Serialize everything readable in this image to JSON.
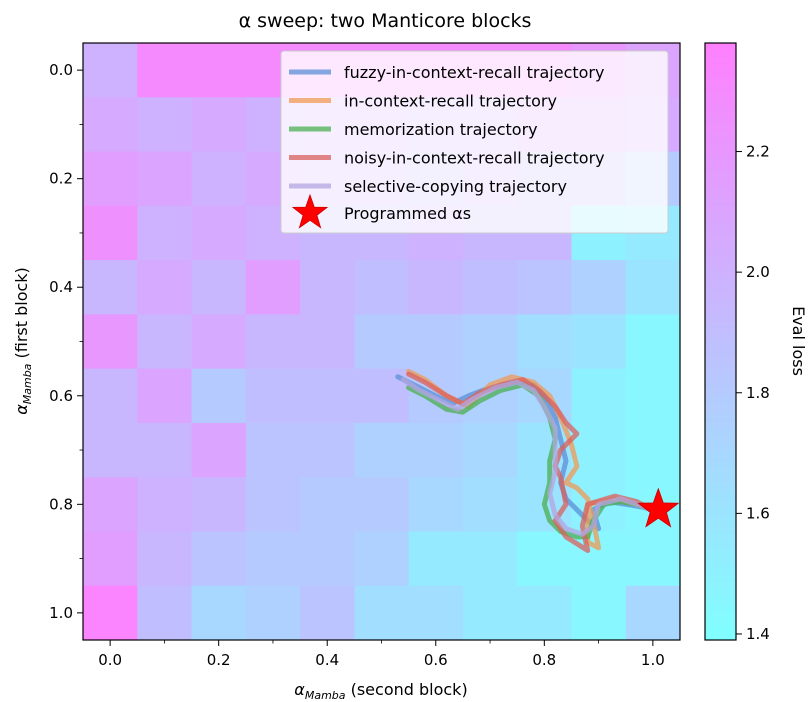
{
  "chart_data": {
    "type": "heatmap",
    "title": "α sweep: two Manticore blocks",
    "xlabel": "α",
    "xlabel_sub": "Mamba",
    "xlabel_suffix": " (second block)",
    "ylabel": "α",
    "ylabel_sub": "Mamba",
    "ylabel_suffix": " (first block)",
    "xlim": [
      -0.05,
      1.05
    ],
    "ylim": [
      1.05,
      -0.05
    ],
    "x_ticks": [
      0.0,
      0.2,
      0.4,
      0.6,
      0.8,
      1.0
    ],
    "x_tick_labels": [
      "0.0",
      "0.2",
      "0.4",
      "0.6",
      "0.8",
      "1.0"
    ],
    "y_ticks": [
      0.0,
      0.2,
      0.4,
      0.6,
      0.8,
      1.0
    ],
    "y_tick_labels": [
      "0.0",
      "0.2",
      "0.4",
      "0.6",
      "0.8",
      "1.0"
    ],
    "grid": false,
    "colorbar": {
      "label": "Eval loss",
      "range": [
        1.39,
        2.38
      ],
      "ticks": [
        1.4,
        1.6,
        1.8,
        2.0,
        2.2
      ],
      "tick_labels": [
        "1.4",
        "1.6",
        "1.8",
        "2.0",
        "2.2"
      ],
      "colors": [
        "#80ffff",
        "#ff80ff"
      ]
    },
    "grid_axis_values": [
      0.0,
      0.1,
      0.2,
      0.3,
      0.4,
      0.5,
      0.6,
      0.7,
      0.8,
      0.9,
      1.0
    ],
    "heatmap_values": [
      [
        2.0,
        2.3,
        2.3,
        2.3,
        2.3,
        2.3,
        2.3,
        2.3,
        2.3,
        2.2,
        2.1
      ],
      [
        2.05,
        2.0,
        2.05,
        2.0,
        2.05,
        2.05,
        2.0,
        2.0,
        2.1,
        2.1,
        2.05
      ],
      [
        2.15,
        2.1,
        2.0,
        2.05,
        2.0,
        2.0,
        1.95,
        2.0,
        1.95,
        1.95,
        1.8
      ],
      [
        2.25,
        2.0,
        2.05,
        2.0,
        1.95,
        1.95,
        2.0,
        1.95,
        1.95,
        1.5,
        1.55
      ],
      [
        1.95,
        2.05,
        1.95,
        2.15,
        1.95,
        1.9,
        1.95,
        1.9,
        1.85,
        1.75,
        1.6
      ],
      [
        2.2,
        1.95,
        2.05,
        1.95,
        1.95,
        1.8,
        1.8,
        1.75,
        1.65,
        1.6,
        1.45
      ],
      [
        1.95,
        2.1,
        1.8,
        1.9,
        1.9,
        1.9,
        1.8,
        1.75,
        1.7,
        1.5,
        1.45
      ],
      [
        1.95,
        1.95,
        2.1,
        1.85,
        1.85,
        1.75,
        1.75,
        1.7,
        1.6,
        1.5,
        1.45
      ],
      [
        2.1,
        2.0,
        1.95,
        1.85,
        1.8,
        1.8,
        1.7,
        1.65,
        1.6,
        1.5,
        1.45
      ],
      [
        2.15,
        1.95,
        1.85,
        1.8,
        1.8,
        1.75,
        1.55,
        1.55,
        1.45,
        1.45,
        1.45
      ],
      [
        2.35,
        1.9,
        1.7,
        1.75,
        1.85,
        1.65,
        1.65,
        1.55,
        1.55,
        1.45,
        1.7
      ]
    ],
    "series": [
      {
        "name": "fuzzy-in-context-recall trajectory",
        "color": "#5b8fd6",
        "points": [
          [
            0.53,
            0.565
          ],
          [
            0.56,
            0.58
          ],
          [
            0.6,
            0.6
          ],
          [
            0.63,
            0.615
          ],
          [
            0.66,
            0.6
          ],
          [
            0.7,
            0.585
          ],
          [
            0.75,
            0.575
          ],
          [
            0.78,
            0.58
          ],
          [
            0.8,
            0.6
          ],
          [
            0.82,
            0.64
          ],
          [
            0.83,
            0.68
          ],
          [
            0.84,
            0.72
          ],
          [
            0.83,
            0.76
          ],
          [
            0.84,
            0.79
          ],
          [
            0.86,
            0.81
          ],
          [
            0.88,
            0.83
          ],
          [
            0.9,
            0.845
          ],
          [
            0.89,
            0.81
          ],
          [
            0.92,
            0.795
          ],
          [
            0.95,
            0.8
          ],
          [
            0.98,
            0.805
          ],
          [
            1.0,
            0.81
          ]
        ]
      },
      {
        "name": "in-context-recall trajectory",
        "color": "#f09a55",
        "points": [
          [
            0.55,
            0.555
          ],
          [
            0.58,
            0.57
          ],
          [
            0.62,
            0.6
          ],
          [
            0.66,
            0.62
          ],
          [
            0.7,
            0.58
          ],
          [
            0.74,
            0.565
          ],
          [
            0.78,
            0.575
          ],
          [
            0.81,
            0.6
          ],
          [
            0.83,
            0.64
          ],
          [
            0.85,
            0.69
          ],
          [
            0.86,
            0.73
          ],
          [
            0.84,
            0.76
          ],
          [
            0.86,
            0.77
          ],
          [
            0.88,
            0.79
          ],
          [
            0.89,
            0.83
          ],
          [
            0.9,
            0.88
          ],
          [
            0.88,
            0.87
          ],
          [
            0.88,
            0.8
          ],
          [
            0.93,
            0.79
          ],
          [
            0.97,
            0.8
          ],
          [
            1.0,
            0.81
          ]
        ]
      },
      {
        "name": "memorization trajectory",
        "color": "#4caf50",
        "points": [
          [
            0.55,
            0.585
          ],
          [
            0.58,
            0.6
          ],
          [
            0.62,
            0.625
          ],
          [
            0.65,
            0.63
          ],
          [
            0.68,
            0.61
          ],
          [
            0.72,
            0.59
          ],
          [
            0.76,
            0.58
          ],
          [
            0.79,
            0.6
          ],
          [
            0.81,
            0.64
          ],
          [
            0.82,
            0.68
          ],
          [
            0.81,
            0.72
          ],
          [
            0.81,
            0.76
          ],
          [
            0.8,
            0.8
          ],
          [
            0.81,
            0.83
          ],
          [
            0.83,
            0.85
          ],
          [
            0.86,
            0.86
          ],
          [
            0.88,
            0.86
          ],
          [
            0.89,
            0.83
          ],
          [
            0.91,
            0.8
          ],
          [
            0.94,
            0.795
          ],
          [
            0.97,
            0.8
          ],
          [
            1.0,
            0.81
          ]
        ]
      },
      {
        "name": "noisy-in-context-recall trajectory",
        "color": "#d9605c",
        "points": [
          [
            0.55,
            0.56
          ],
          [
            0.58,
            0.575
          ],
          [
            0.62,
            0.6
          ],
          [
            0.65,
            0.615
          ],
          [
            0.68,
            0.595
          ],
          [
            0.72,
            0.58
          ],
          [
            0.76,
            0.57
          ],
          [
            0.79,
            0.59
          ],
          [
            0.82,
            0.62
          ],
          [
            0.84,
            0.65
          ],
          [
            0.86,
            0.67
          ],
          [
            0.83,
            0.7
          ],
          [
            0.82,
            0.73
          ],
          [
            0.83,
            0.75
          ],
          [
            0.84,
            0.8
          ],
          [
            0.82,
            0.83
          ],
          [
            0.84,
            0.86
          ],
          [
            0.88,
            0.885
          ],
          [
            0.87,
            0.84
          ],
          [
            0.88,
            0.8
          ],
          [
            0.93,
            0.785
          ],
          [
            0.97,
            0.795
          ],
          [
            1.0,
            0.81
          ]
        ]
      },
      {
        "name": "selective-copying trajectory",
        "color": "#b3a6e0",
        "points": [
          [
            0.54,
            0.57
          ],
          [
            0.57,
            0.59
          ],
          [
            0.61,
            0.61
          ],
          [
            0.64,
            0.625
          ],
          [
            0.67,
            0.605
          ],
          [
            0.71,
            0.585
          ],
          [
            0.75,
            0.575
          ],
          [
            0.78,
            0.59
          ],
          [
            0.8,
            0.62
          ],
          [
            0.82,
            0.66
          ],
          [
            0.82,
            0.7
          ],
          [
            0.82,
            0.74
          ],
          [
            0.81,
            0.78
          ],
          [
            0.82,
            0.82
          ],
          [
            0.84,
            0.845
          ],
          [
            0.87,
            0.855
          ],
          [
            0.89,
            0.84
          ],
          [
            0.9,
            0.8
          ],
          [
            0.94,
            0.79
          ],
          [
            0.97,
            0.8
          ],
          [
            1.0,
            0.81
          ]
        ]
      }
    ],
    "marker": {
      "name": "Programmed αs",
      "x": 1.01,
      "y": 0.81,
      "color": "#ff0000",
      "shape": "star"
    },
    "legend_position": "top-right"
  }
}
